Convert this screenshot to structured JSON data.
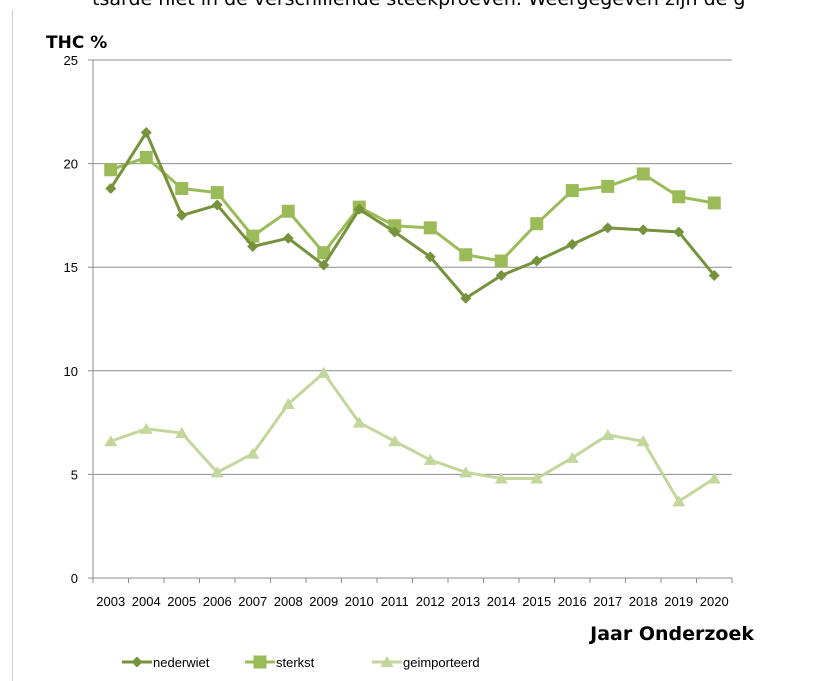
{
  "header_fragment": "tsarde niet in de verschillende steekproeven. Weergegeven zijn de g",
  "chart_data": {
    "type": "line",
    "title": "",
    "ylabel": "THC %",
    "xlabel": "Jaar Onderzoek",
    "ylim": [
      0,
      25
    ],
    "yticks": [
      0,
      5,
      10,
      15,
      20,
      25
    ],
    "grid": true,
    "legend_position": "bottom-left",
    "categories": [
      "2003",
      "2004",
      "2005",
      "2006",
      "2007",
      "2008",
      "2009",
      "2010",
      "2011",
      "2012",
      "2013",
      "2014",
      "2015",
      "2016",
      "2017",
      "2018",
      "2019",
      "2020"
    ],
    "series": [
      {
        "name": "nederwiet",
        "marker": "diamond",
        "color": "#76923c",
        "values": [
          18.8,
          21.5,
          17.5,
          18.0,
          16.0,
          16.4,
          15.1,
          17.8,
          16.7,
          15.5,
          13.5,
          14.6,
          15.3,
          16.1,
          16.9,
          16.8,
          16.7,
          14.6
        ]
      },
      {
        "name": "sterkst",
        "marker": "square",
        "color": "#9bbb59",
        "values": [
          19.7,
          20.3,
          18.8,
          18.6,
          16.5,
          17.7,
          15.7,
          17.9,
          17.0,
          16.9,
          15.6,
          15.3,
          17.1,
          18.7,
          18.9,
          19.5,
          18.4,
          18.1
        ]
      },
      {
        "name": "geimporteerd",
        "marker": "triangle",
        "color": "#c3d69b",
        "values": [
          6.6,
          7.2,
          7.0,
          5.1,
          6.0,
          8.4,
          9.9,
          7.5,
          6.6,
          5.7,
          5.1,
          4.8,
          4.8,
          5.8,
          6.9,
          6.6,
          3.7,
          4.8
        ]
      }
    ]
  }
}
